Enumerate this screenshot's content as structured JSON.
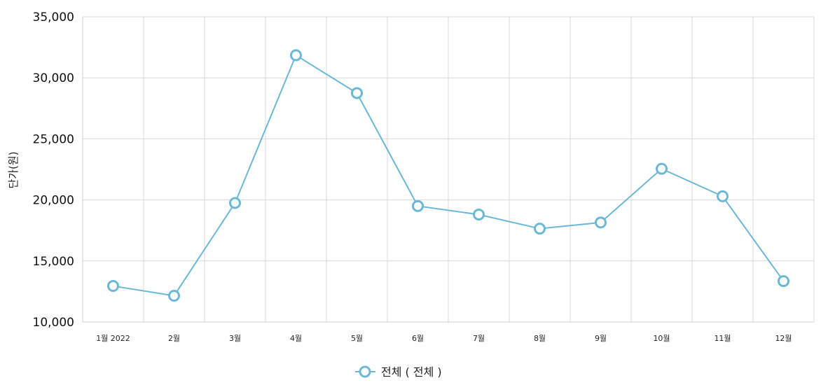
{
  "chart_data": {
    "type": "line",
    "categories": [
      "1월 2022",
      "2월",
      "3월",
      "4월",
      "5월",
      "6월",
      "7월",
      "8월",
      "9월",
      "10월",
      "11월",
      "12월"
    ],
    "series": [
      {
        "name": "전체 ( 전체 )",
        "color": "#6bb8d6",
        "values": [
          12950,
          12150,
          19750,
          31850,
          28750,
          19500,
          18800,
          17650,
          18150,
          22550,
          20300,
          13350
        ]
      }
    ],
    "ylabel": "단가(원)",
    "xlabel": "",
    "ylim": [
      10000,
      35000
    ],
    "yticks": [
      "10,000",
      "15,000",
      "20,000",
      "25,000",
      "30,000",
      "35,000"
    ],
    "grid": true,
    "legend_position": "bottom"
  }
}
